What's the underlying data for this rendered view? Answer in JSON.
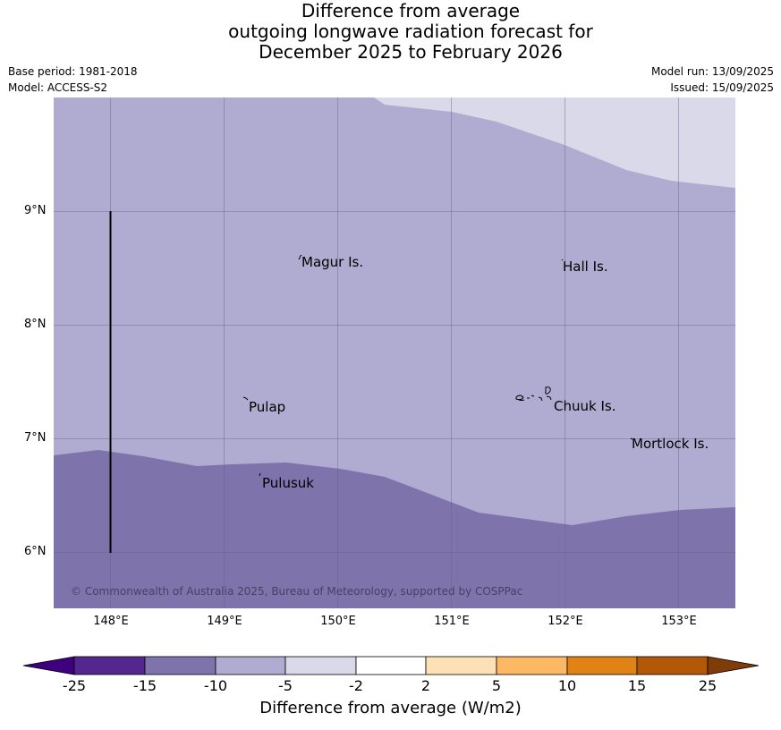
{
  "title": {
    "line1": "Difference from average",
    "line2": "outgoing longwave radiation forecast for",
    "line3": "December 2025 to February 2026"
  },
  "meta": {
    "base_period": "Base period: 1981-2018",
    "model": "Model: ACCESS-S2",
    "model_run": "Model run: 13/09/2025",
    "issued": "Issued: 15/09/2025"
  },
  "map": {
    "lat_labels": [
      "9°N",
      "8°N",
      "7°N",
      "6°N"
    ],
    "lon_labels": [
      "148°E",
      "149°E",
      "150°E",
      "151°E",
      "152°E",
      "153°E"
    ],
    "places": [
      {
        "name": "Magur Is.",
        "lon": 149.68,
        "lat": 8.55
      },
      {
        "name": "Hall Is.",
        "lon": 151.98,
        "lat": 8.52
      },
      {
        "name": "Pulap",
        "lon": 149.2,
        "lat": 7.28
      },
      {
        "name": "Chuuk Is.",
        "lon": 151.9,
        "lat": 7.29
      },
      {
        "name": "Mortlock Is.",
        "lon": 152.58,
        "lat": 6.97
      },
      {
        "name": "Pulusuk",
        "lon": 149.32,
        "lat": 6.62
      }
    ],
    "category_colors": {
      "minus15_to_minus10": "#7e73ab",
      "minus10_to_minus5": "#b0abd1",
      "minus5_to_minus2": "#d9d9ea"
    },
    "copyright": "© Commonwealth of Australia 2025, Bureau of Meteorology, supported by COSPPac"
  },
  "colorbar": {
    "ticks": [
      "-25",
      "-15",
      "-10",
      "-5",
      "-2",
      "2",
      "5",
      "10",
      "15",
      "25"
    ],
    "colors": [
      "#3f007d",
      "#54278f",
      "#7e73ab",
      "#b0abd1",
      "#d9d9ea",
      "#ffffff",
      "#fde0b6",
      "#fdb863",
      "#e08214",
      "#b35806",
      "#7f3b08"
    ],
    "title": "Difference from average (W/m2)"
  }
}
